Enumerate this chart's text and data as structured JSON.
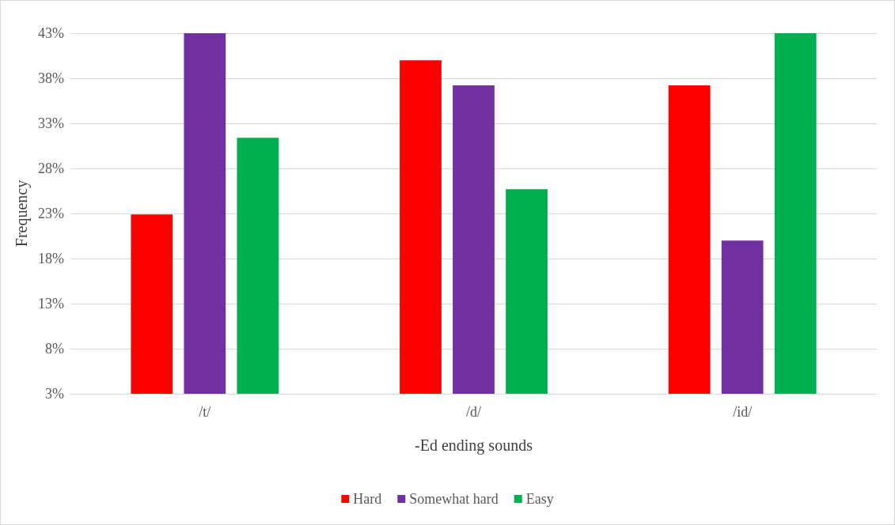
{
  "chart_data": {
    "type": "bar",
    "xlabel": "-Ed ending sounds",
    "ylabel": "Frequency",
    "categories": [
      "/t/",
      "/d/",
      "/id/"
    ],
    "series": [
      {
        "name": "Hard",
        "color": "#ff0000",
        "values": [
          22.9,
          40,
          37.2
        ]
      },
      {
        "name": "Somewhat hard",
        "color": "#7030a0",
        "values": [
          43,
          37.2,
          20
        ]
      },
      {
        "name": "Easy",
        "color": "#00b050",
        "values": [
          31.4,
          25.7,
          43
        ]
      }
    ],
    "ylim": [
      3,
      43
    ],
    "yticks": [
      {
        "value": 3,
        "label": "3%"
      },
      {
        "value": 8,
        "label": "8%"
      },
      {
        "value": 13,
        "label": "13%"
      },
      {
        "value": 18,
        "label": "18%"
      },
      {
        "value": 23,
        "label": "23%"
      },
      {
        "value": 28,
        "label": "28%"
      },
      {
        "value": 33,
        "label": "33%"
      },
      {
        "value": 38,
        "label": "38%"
      },
      {
        "value": 43,
        "label": "43%"
      }
    ],
    "grid": "y",
    "legend": "bottom"
  }
}
